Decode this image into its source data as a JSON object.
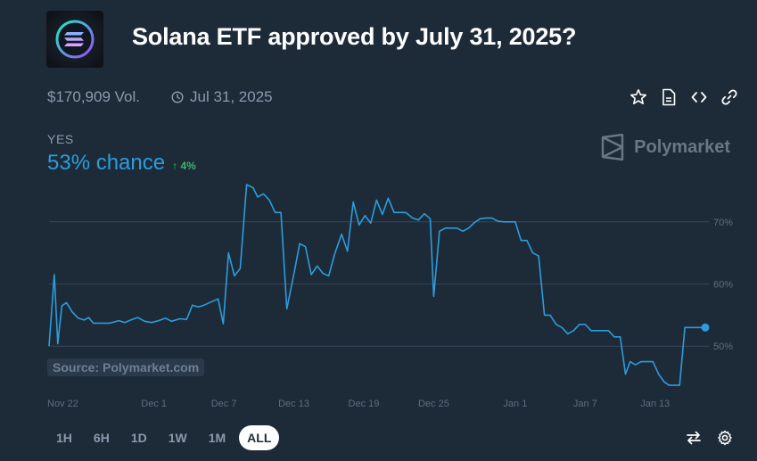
{
  "market": {
    "title": "Solana ETF approved by July 31, 2025?",
    "volume": "$170,909 Vol.",
    "end_date": "Jul 31, 2025",
    "outcome": "YES",
    "chance": "53% chance",
    "delta": "4%",
    "brand": "Polymarket",
    "source": "Source: Polymarket.com"
  },
  "ranges": [
    "1H",
    "6H",
    "1D",
    "1W",
    "1M",
    "ALL"
  ],
  "selected_range": "ALL",
  "colors": {
    "background": "#1d2b39",
    "line": "#2d9cdb",
    "up": "#3db468",
    "grid": "#34475a",
    "axis_text": "#5c6d7e"
  },
  "chart_data": {
    "type": "line",
    "y_unit": "%",
    "ylim": [
      43,
      77
    ],
    "y_ticks": [
      50,
      60,
      70
    ],
    "y_tick_labels": [
      "50%",
      "60%",
      "70%"
    ],
    "x_ticks": [
      0,
      9,
      15,
      21,
      27,
      33,
      40,
      46,
      52
    ],
    "x_tick_labels": [
      "Nov 22",
      "Dec 1",
      "Dec 7",
      "Dec 13",
      "Dec 19",
      "Dec 25",
      "Jan 1",
      "Jan 7",
      "Jan 13"
    ],
    "x_max": 56.3,
    "grid": true,
    "series": [
      {
        "points": [
          [
            0.0,
            50
          ],
          [
            0.45,
            61.5
          ],
          [
            0.75,
            50.4
          ],
          [
            1.1,
            56.5
          ],
          [
            1.5,
            57
          ],
          [
            2.0,
            55.5
          ],
          [
            2.5,
            54.5
          ],
          [
            3.0,
            54.2
          ],
          [
            3.4,
            54.6
          ],
          [
            3.8,
            53.7
          ],
          [
            4.5,
            53.7
          ],
          [
            5.2,
            53.7
          ],
          [
            6.0,
            54.1
          ],
          [
            6.5,
            53.8
          ],
          [
            7.0,
            54.2
          ],
          [
            7.6,
            54.6
          ],
          [
            8.2,
            54.0
          ],
          [
            8.8,
            53.8
          ],
          [
            9.4,
            54.1
          ],
          [
            10.0,
            54.5
          ],
          [
            10.5,
            54.0
          ],
          [
            11.2,
            54.4
          ],
          [
            11.8,
            54.3
          ],
          [
            12.3,
            56.6
          ],
          [
            12.8,
            56.3
          ],
          [
            13.3,
            56.6
          ],
          [
            13.9,
            57.1
          ],
          [
            14.5,
            57.6
          ],
          [
            14.95,
            53.6
          ],
          [
            15.4,
            65.0
          ],
          [
            15.9,
            61.3
          ],
          [
            16.4,
            62.5
          ],
          [
            16.95,
            76.0
          ],
          [
            17.5,
            75.5
          ],
          [
            17.9,
            74.0
          ],
          [
            18.4,
            74.5
          ],
          [
            18.9,
            73.5
          ],
          [
            19.4,
            71.5
          ],
          [
            19.9,
            71.5
          ],
          [
            20.4,
            56.0
          ],
          [
            21.0,
            61.5
          ],
          [
            21.5,
            66.5
          ],
          [
            22.0,
            66.0
          ],
          [
            22.5,
            61.5
          ],
          [
            23.0,
            62.9
          ],
          [
            23.5,
            61.7
          ],
          [
            24.0,
            61.3
          ],
          [
            24.5,
            64.8
          ],
          [
            25.1,
            68.0
          ],
          [
            25.6,
            65.3
          ],
          [
            26.1,
            73.2
          ],
          [
            26.6,
            69.5
          ],
          [
            27.1,
            71.0
          ],
          [
            27.6,
            69.8
          ],
          [
            28.1,
            73.5
          ],
          [
            28.6,
            71.2
          ],
          [
            29.1,
            73.8
          ],
          [
            29.6,
            71.5
          ],
          [
            30.1,
            71.5
          ],
          [
            30.6,
            71.5
          ],
          [
            31.2,
            70.6
          ],
          [
            31.7,
            70.3
          ],
          [
            32.2,
            71.3
          ],
          [
            32.7,
            70.5
          ],
          [
            33.0,
            58.0
          ],
          [
            33.5,
            68.5
          ],
          [
            34.0,
            69.0
          ],
          [
            34.5,
            69.0
          ],
          [
            35.0,
            69.0
          ],
          [
            35.5,
            68.5
          ],
          [
            36.0,
            69.0
          ],
          [
            36.5,
            69.9
          ],
          [
            37.0,
            70.5
          ],
          [
            37.5,
            70.6
          ],
          [
            38.0,
            70.6
          ],
          [
            38.5,
            70.1
          ],
          [
            39.0,
            70.0
          ],
          [
            39.5,
            70.0
          ],
          [
            40.0,
            70.0
          ],
          [
            40.5,
            67.0
          ],
          [
            41.0,
            67.0
          ],
          [
            41.5,
            65.0
          ],
          [
            42.0,
            64.5
          ],
          [
            42.5,
            55.0
          ],
          [
            43.0,
            55.0
          ],
          [
            43.5,
            53.5
          ],
          [
            44.0,
            53.0
          ],
          [
            44.5,
            52.0
          ],
          [
            45.0,
            52.5
          ],
          [
            45.5,
            53.5
          ],
          [
            46.0,
            53.5
          ],
          [
            46.5,
            52.5
          ],
          [
            47.0,
            52.5
          ],
          [
            47.5,
            52.5
          ],
          [
            48.0,
            52.5
          ],
          [
            48.5,
            51.5
          ],
          [
            49.0,
            51.5
          ],
          [
            49.45,
            45.5
          ],
          [
            49.85,
            47.5
          ],
          [
            50.3,
            47.0
          ],
          [
            50.8,
            47.5
          ],
          [
            51.3,
            47.5
          ],
          [
            51.8,
            47.5
          ],
          [
            52.3,
            45.5
          ],
          [
            52.8,
            44.2
          ],
          [
            53.2,
            43.7
          ],
          [
            53.7,
            43.7
          ],
          [
            54.1,
            43.7
          ],
          [
            54.55,
            53.0
          ],
          [
            55.0,
            53.0
          ],
          [
            55.5,
            53.0
          ],
          [
            56.3,
            53.0
          ]
        ]
      }
    ]
  }
}
